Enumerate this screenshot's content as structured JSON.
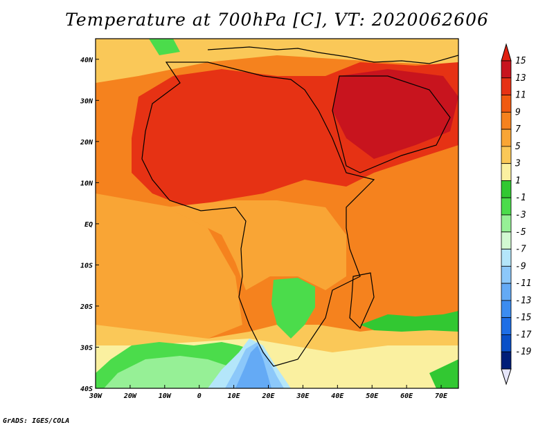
{
  "title": "Temperature at 700hPa [C], VT: 2020062606",
  "footer": "GrADS: IGES/COLA",
  "map": {
    "lon_range": [
      -30,
      75
    ],
    "lat_range": [
      -40,
      45
    ],
    "lon_ticks": [
      {
        "value": -30,
        "label": "30W"
      },
      {
        "value": -20,
        "label": "20W"
      },
      {
        "value": -10,
        "label": "10W"
      },
      {
        "value": 0,
        "label": "0"
      },
      {
        "value": 10,
        "label": "10E"
      },
      {
        "value": 20,
        "label": "20E"
      },
      {
        "value": 30,
        "label": "30E"
      },
      {
        "value": 40,
        "label": "40E"
      },
      {
        "value": 50,
        "label": "50E"
      },
      {
        "value": 60,
        "label": "60E"
      },
      {
        "value": 70,
        "label": "70E"
      }
    ],
    "lat_ticks": [
      {
        "value": 40,
        "label": "40N"
      },
      {
        "value": 30,
        "label": "30N"
      },
      {
        "value": 20,
        "label": "20N"
      },
      {
        "value": 10,
        "label": "10N"
      },
      {
        "value": 0,
        "label": "EQ"
      },
      {
        "value": -10,
        "label": "10S"
      },
      {
        "value": -20,
        "label": "20S"
      },
      {
        "value": -30,
        "label": "30S"
      },
      {
        "value": -40,
        "label": "40S"
      }
    ]
  },
  "colorbar": {
    "labels": [
      "15",
      "13",
      "11",
      "9",
      "7",
      "5",
      "3",
      "1",
      "-1",
      "-3",
      "-5",
      "-7",
      "-9",
      "-11",
      "-13",
      "-15",
      "-17",
      "-19"
    ],
    "colors": [
      "#c8141e",
      "#e63214",
      "#f05a10",
      "#f5821e",
      "#f9a535",
      "#fac858",
      "#faf0a0",
      "#32c832",
      "#4bdc4b",
      "#96f096",
      "#d2fad2",
      "#b4e6fa",
      "#8cc8fa",
      "#64aaf5",
      "#3c8cf0",
      "#1e6ee6",
      "#0a50c8",
      "#001e78"
    ],
    "top_color": "#e02010",
    "bottom_color": "#e6e6fa"
  }
}
